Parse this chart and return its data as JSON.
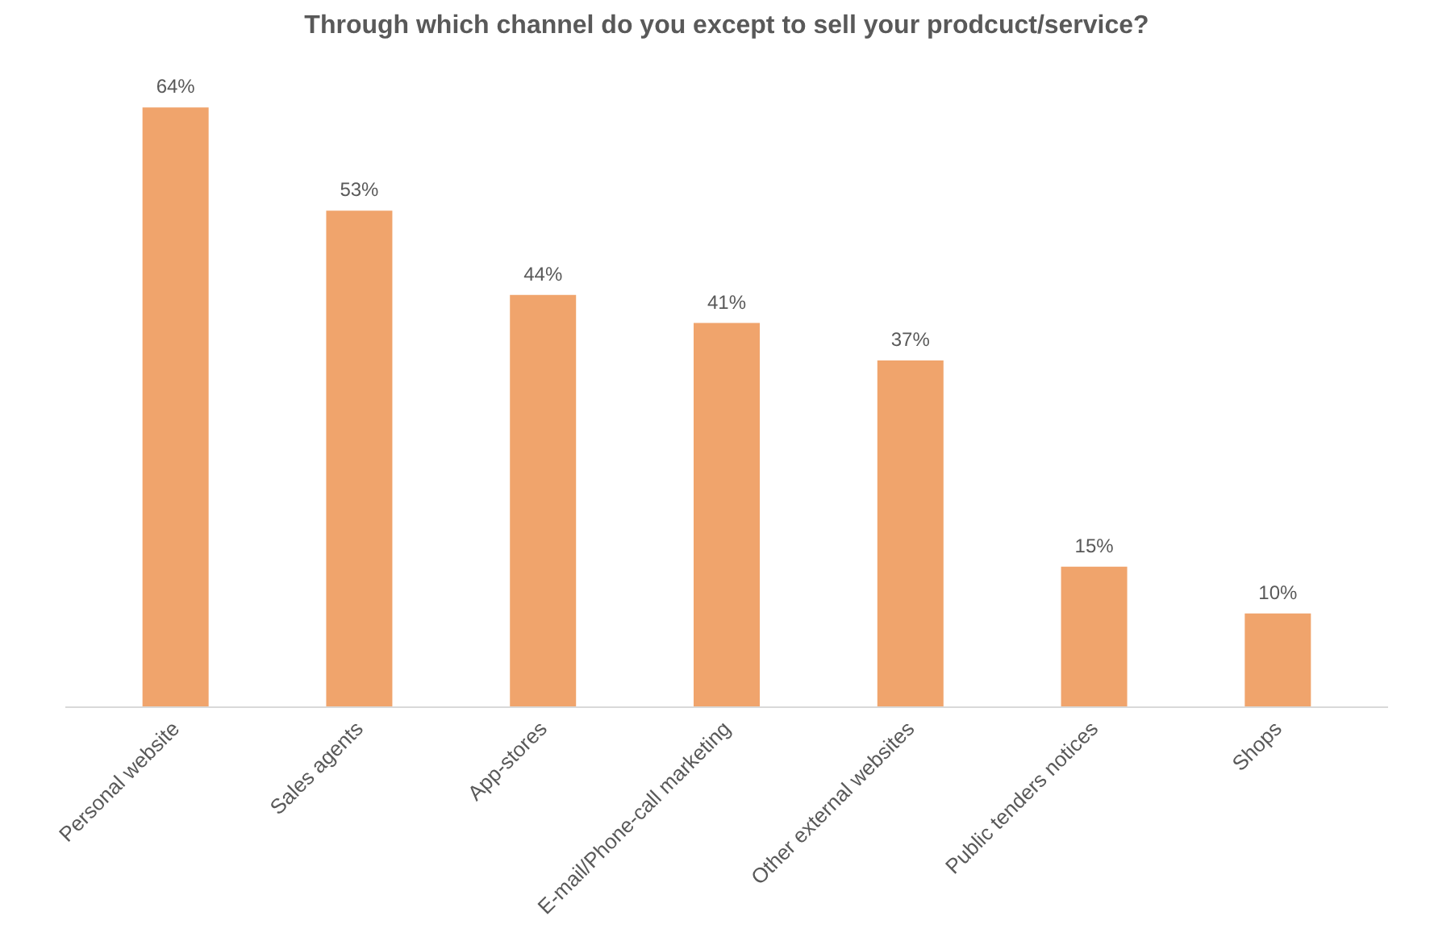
{
  "chart_data": {
    "type": "bar",
    "title": "Through which channel do you except to sell your prodcuct/service?",
    "categories": [
      "Personal website",
      "Sales agents",
      "App-stores",
      "E-mail/Phone-call marketing",
      "Other external websites",
      "Public tenders notices",
      "Shops"
    ],
    "values": [
      64,
      53,
      44,
      41,
      37,
      15,
      10
    ],
    "value_labels": [
      "64%",
      "53%",
      "44%",
      "41%",
      "37%",
      "15%",
      "10%"
    ],
    "color": "#f0a46c",
    "grid": false,
    "tick_labels": "x"
  }
}
